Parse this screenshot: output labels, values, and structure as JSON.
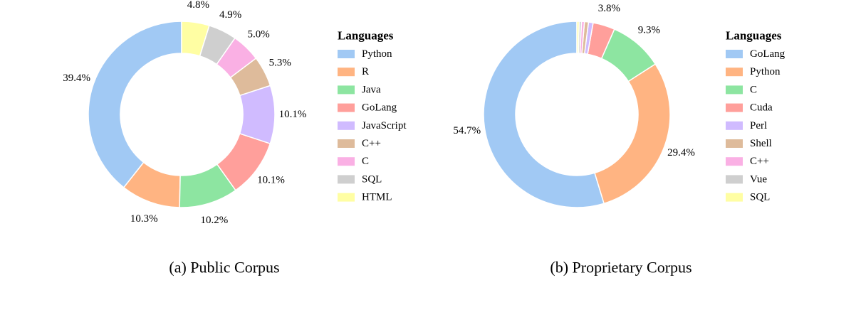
{
  "palette": [
    "#a1c9f4",
    "#ffb482",
    "#8de5a1",
    "#ff9f9b",
    "#d0bbff",
    "#debb9b",
    "#fab0e4",
    "#cfcfcf",
    "#fffea3"
  ],
  "chart_data": [
    {
      "type": "pie",
      "subtype": "donut",
      "caption": "(a) Public Corpus",
      "legend_title": "Languages",
      "legend_position": "right",
      "categories": [
        "Python",
        "R",
        "Java",
        "GoLang",
        "JavaScript",
        "C++",
        "C",
        "SQL",
        "HTML"
      ],
      "values": [
        39.4,
        10.3,
        10.2,
        10.1,
        10.1,
        5.3,
        5.0,
        4.9,
        4.8
      ],
      "value_labels": [
        "39.4%",
        "10.3%",
        "10.2%",
        "10.1%",
        "10.1%",
        "5.3%",
        "5.0%",
        "4.9%",
        "4.8%"
      ],
      "hidden_labels": []
    },
    {
      "type": "pie",
      "subtype": "donut",
      "caption": "(b) Proprietary Corpus",
      "legend_title": "Languages",
      "legend_position": "right",
      "categories": [
        "GoLang",
        "Python",
        "C",
        "Cuda",
        "Perl",
        "Shell",
        "C++",
        "Vue",
        "SQL"
      ],
      "values": [
        54.7,
        29.4,
        9.3,
        3.8,
        0.8,
        0.7,
        0.5,
        0.4,
        0.4
      ],
      "value_labels": [
        "54.7%",
        "29.4%",
        "9.3%",
        "3.8%",
        "",
        "",
        "",
        "",
        ""
      ],
      "hidden_labels": [
        4,
        5,
        6,
        7,
        8
      ]
    }
  ]
}
